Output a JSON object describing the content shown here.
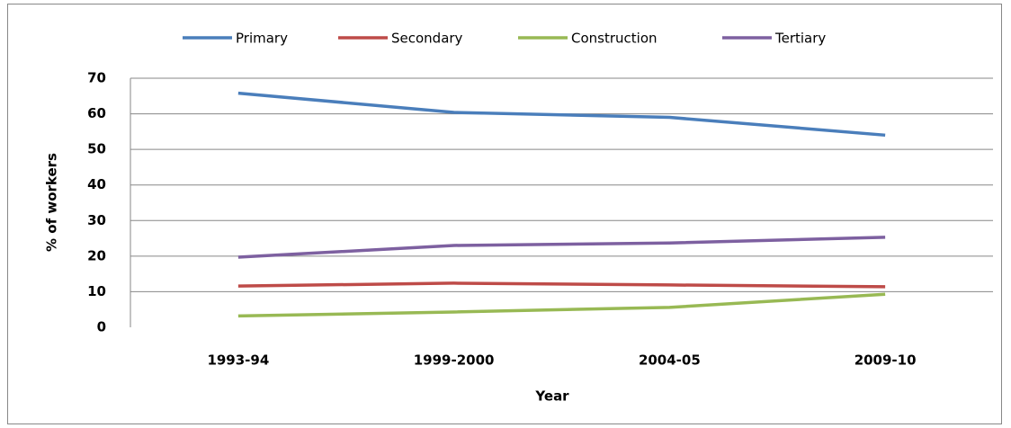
{
  "chart_data": {
    "type": "line",
    "x_label": "Year",
    "y_label": "% of workers",
    "categories": [
      "1993-94",
      "1999-2000",
      "2004-05",
      "2009-10"
    ],
    "series": [
      {
        "name": "Primary",
        "color": "#4a7ebb",
        "values": [
          65.8,
          60.4,
          59,
          54
        ]
      },
      {
        "name": "Secondary",
        "color": "#be4b48",
        "values": [
          11.6,
          12.4,
          11.9,
          11.4
        ]
      },
      {
        "name": "Construction",
        "color": "#98b954",
        "values": [
          3.2,
          4.3,
          5.6,
          9.3
        ]
      },
      {
        "name": "Tertiary",
        "color": "#7d60a0",
        "values": [
          19.7,
          23,
          23.7,
          25.3
        ]
      }
    ],
    "ylim": [
      0,
      70
    ],
    "yticks": [
      0,
      10,
      20,
      30,
      40,
      50,
      60,
      70
    ],
    "grid": true,
    "legend": "top"
  }
}
